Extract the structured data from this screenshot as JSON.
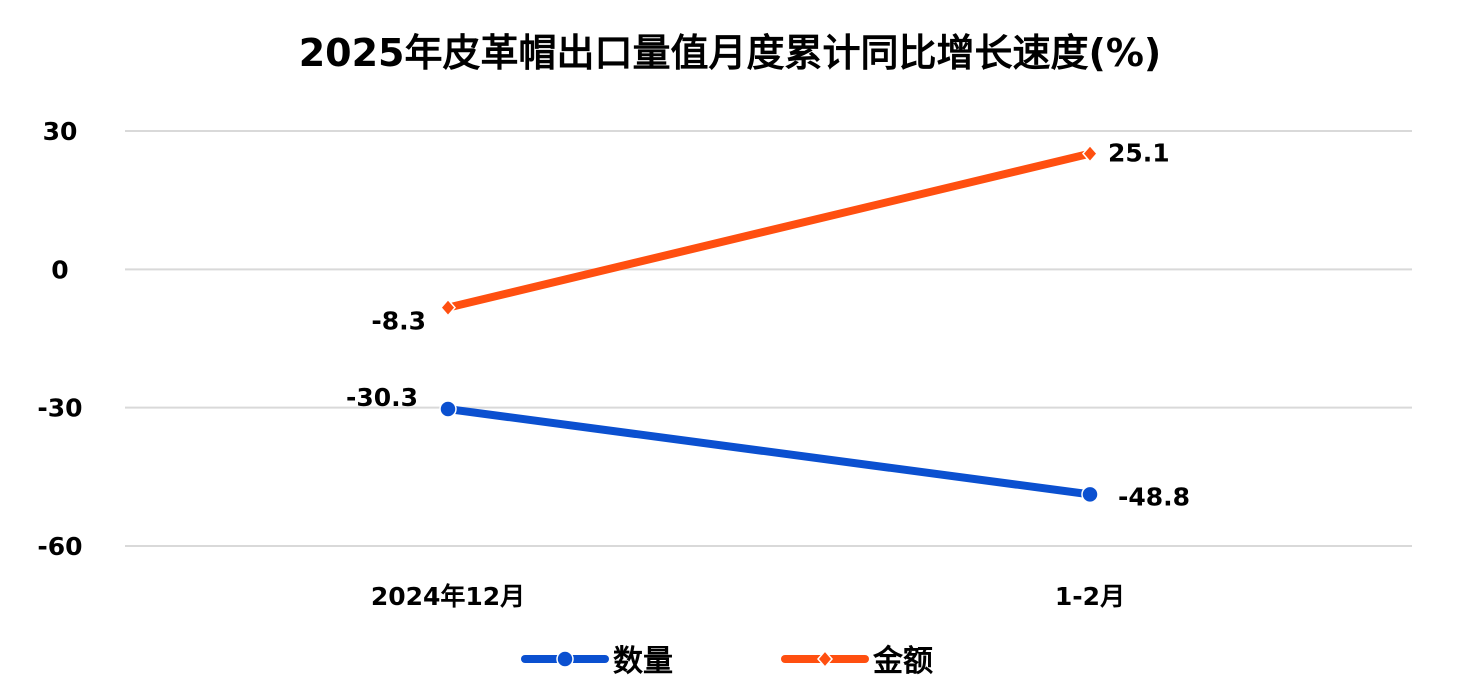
{
  "chart_data": {
    "type": "line",
    "title": "2025年皮革帽出口量值月度累计同比增长速度(%)",
    "categories": [
      "2024年12月",
      "1-2月"
    ],
    "series": [
      {
        "name": "数量",
        "values": [
          -30.3,
          -48.8
        ],
        "color": "#0b50d0",
        "marker": "circle",
        "labels": [
          "-30.3",
          "-48.8"
        ]
      },
      {
        "name": "金额",
        "values": [
          -8.3,
          25.1
        ],
        "color": "#ff4f10",
        "marker": "diamond",
        "labels": [
          "-8.3",
          "25.1"
        ]
      }
    ],
    "ylim": [
      -60,
      30
    ],
    "yticks": [
      30,
      0,
      -30,
      -60
    ],
    "ytick_labels": [
      "30",
      "0",
      "-30",
      "-60"
    ],
    "grid": true,
    "legend": "bottom"
  }
}
